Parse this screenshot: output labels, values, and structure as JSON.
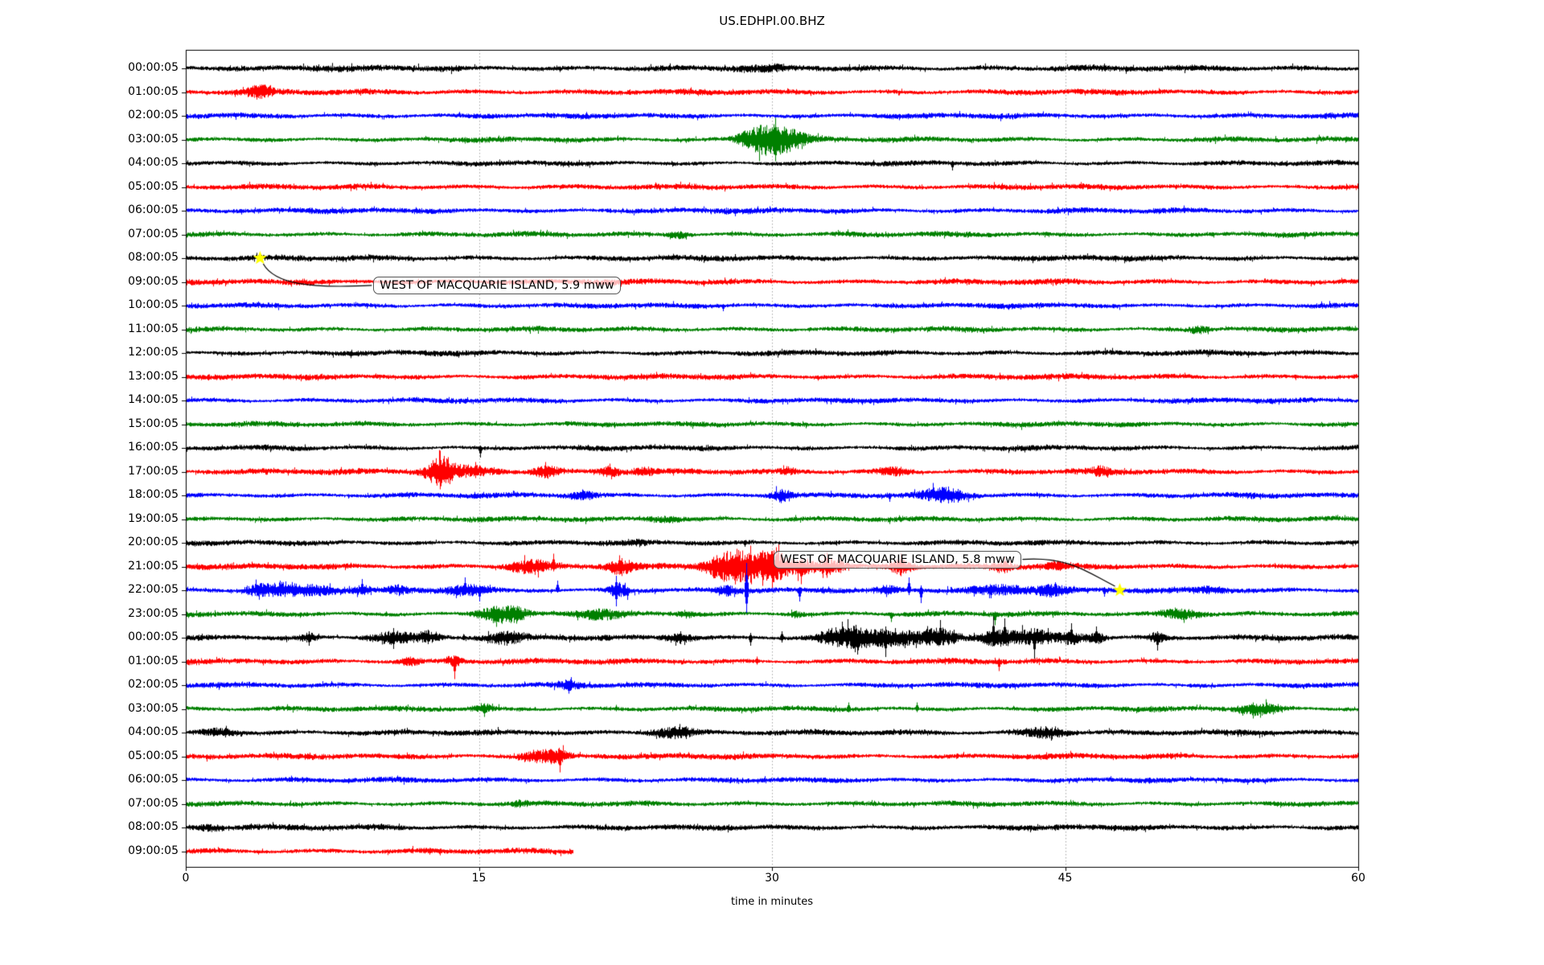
{
  "title": "US.EDHPI.00.BHZ",
  "xlabel": "time in minutes",
  "colors": {
    "black": "#000000",
    "red": "#ff0000",
    "blue": "#0000ff",
    "green": "#008000",
    "star": "#ffff00",
    "grid": "#a6a6a6",
    "axis": "#000000"
  },
  "annotations": [
    {
      "label": "WEST OF MACQUARIE ISLAND, 5.9 mww",
      "star_row": 8,
      "star_minute": 3.8,
      "box_minute": 9.6,
      "box_row": 9.15
    },
    {
      "label": "WEST OF MACQUARIE ISLAND, 5.8 mww",
      "star_row": 22,
      "star_minute": 47.8,
      "box_minute": 30.1,
      "box_row": 20.7
    }
  ],
  "chart_data": {
    "type": "line",
    "subtype": "seismogram-dayplot",
    "station": "US.EDHPI.00.BHZ",
    "xlim": [
      0,
      60
    ],
    "x_ticks": [
      0,
      15,
      30,
      45,
      60
    ],
    "grid_minutes": [
      15,
      30,
      45
    ],
    "grid_on": true,
    "interval_minutes": 60,
    "rows": [
      {
        "label": "00:00:05",
        "color": "black",
        "base": 2.8,
        "end": 60,
        "bursts": [
          [
            29.5,
            2.0,
            1.2
          ]
        ],
        "spikes": [
          [
            47.0,
            6,
            2
          ]
        ]
      },
      {
        "label": "01:00:05",
        "color": "red",
        "base": 2.6,
        "end": 60,
        "bursts": [
          [
            3.8,
            0.9,
            6
          ]
        ],
        "spikes": [
          [
            3.8,
            9,
            5
          ]
        ]
      },
      {
        "label": "02:00:05",
        "color": "blue",
        "base": 2.5,
        "end": 60,
        "bursts": [],
        "spikes": []
      },
      {
        "label": "03:00:05",
        "color": "green",
        "base": 2.4,
        "end": 60,
        "bursts": [
          [
            29.2,
            1.4,
            9
          ],
          [
            30.4,
            1.8,
            13
          ]
        ],
        "spikes": [
          [
            29.0,
            12,
            10
          ],
          [
            30.15,
            27,
            27
          ],
          [
            30.6,
            16,
            12
          ]
        ]
      },
      {
        "label": "04:00:05",
        "color": "black",
        "base": 2.3,
        "end": 60,
        "bursts": [],
        "spikes": [
          [
            39.2,
            3,
            9
          ]
        ]
      },
      {
        "label": "05:00:05",
        "color": "red",
        "base": 2.5,
        "end": 60,
        "bursts": [],
        "spikes": []
      },
      {
        "label": "06:00:05",
        "color": "blue",
        "base": 2.5,
        "end": 60,
        "bursts": [],
        "spikes": []
      },
      {
        "label": "07:00:05",
        "color": "green",
        "base": 2.4,
        "end": 60,
        "bursts": [
          [
            25.3,
            0.8,
            3
          ]
        ],
        "spikes": []
      },
      {
        "label": "08:00:05",
        "color": "black",
        "base": 2.6,
        "end": 60,
        "bursts": [],
        "spikes": []
      },
      {
        "label": "09:00:05",
        "color": "red",
        "base": 2.6,
        "end": 60,
        "bursts": [],
        "spikes": []
      },
      {
        "label": "10:00:05",
        "color": "blue",
        "base": 2.4,
        "end": 60,
        "bursts": [],
        "spikes": [
          [
            27.5,
            2,
            7
          ]
        ]
      },
      {
        "label": "11:00:05",
        "color": "green",
        "base": 2.4,
        "end": 60,
        "bursts": [
          [
            51.8,
            0.7,
            3
          ]
        ],
        "spikes": []
      },
      {
        "label": "12:00:05",
        "color": "black",
        "base": 2.5,
        "end": 60,
        "bursts": [],
        "spikes": []
      },
      {
        "label": "13:00:05",
        "color": "red",
        "base": 2.6,
        "end": 60,
        "bursts": [],
        "spikes": []
      },
      {
        "label": "14:00:05",
        "color": "blue",
        "base": 2.4,
        "end": 60,
        "bursts": [],
        "spikes": []
      },
      {
        "label": "15:00:05",
        "color": "green",
        "base": 2.4,
        "end": 60,
        "bursts": [],
        "spikes": []
      },
      {
        "label": "16:00:05",
        "color": "black",
        "base": 2.4,
        "end": 60,
        "bursts": [],
        "spikes": [
          [
            15.05,
            3,
            12
          ]
        ]
      },
      {
        "label": "17:00:05",
        "color": "red",
        "base": 2.6,
        "end": 60,
        "bursts": [
          [
            13.0,
            0.9,
            13
          ],
          [
            14.2,
            2.6,
            5
          ],
          [
            18.4,
            0.9,
            6
          ],
          [
            21.7,
            0.7,
            5
          ],
          [
            23.4,
            0.6,
            4
          ],
          [
            30.8,
            0.5,
            3
          ],
          [
            36.2,
            1.3,
            3.5
          ],
          [
            46.8,
            0.6,
            4
          ]
        ],
        "spikes": [
          [
            13.0,
            26,
            22
          ],
          [
            13.4,
            18,
            14
          ],
          [
            14.8,
            12,
            8
          ],
          [
            18.4,
            12,
            4
          ],
          [
            21.7,
            10,
            3
          ],
          [
            46.8,
            8,
            4
          ]
        ]
      },
      {
        "label": "18:00:05",
        "color": "blue",
        "base": 2.4,
        "end": 60,
        "bursts": [
          [
            20.3,
            0.9,
            4
          ],
          [
            30.5,
            0.8,
            6
          ],
          [
            38.8,
            1.6,
            7
          ]
        ],
        "spikes": [
          [
            30.5,
            8,
            6
          ],
          [
            36.0,
            3,
            8
          ],
          [
            39.0,
            11,
            10
          ],
          [
            39.5,
            8,
            9
          ]
        ]
      },
      {
        "label": "19:00:05",
        "color": "green",
        "base": 2.4,
        "end": 60,
        "bursts": [
          [
            24.5,
            1.6,
            2.5
          ]
        ],
        "spikes": []
      },
      {
        "label": "20:00:05",
        "color": "black",
        "base": 2.4,
        "end": 60,
        "bursts": [
          [
            23.3,
            0.5,
            2.5
          ]
        ],
        "spikes": [
          [
            28.6,
            3,
            5
          ]
        ]
      },
      {
        "label": "21:00:05",
        "color": "red",
        "base": 2.7,
        "end": 60,
        "bursts": [
          [
            17.6,
            1.6,
            6
          ],
          [
            22.2,
            0.9,
            7
          ],
          [
            27.6,
            1.3,
            9
          ],
          [
            28.9,
            2.4,
            13
          ],
          [
            30.3,
            0.9,
            9
          ],
          [
            31.6,
            0.7,
            7
          ],
          [
            32.9,
            1.1,
            8
          ],
          [
            36.6,
            0.9,
            7
          ],
          [
            41.8,
            0.7,
            5
          ],
          [
            44.5,
            0.6,
            3.5
          ]
        ],
        "spikes": [
          [
            18.8,
            16,
            6
          ],
          [
            22.2,
            14,
            10
          ],
          [
            27.0,
            12,
            6
          ],
          [
            28.2,
            22,
            18
          ],
          [
            28.9,
            26,
            20
          ],
          [
            29.5,
            20,
            24
          ],
          [
            30.2,
            24,
            16
          ],
          [
            31.5,
            10,
            22
          ],
          [
            32.8,
            18,
            14
          ],
          [
            33.5,
            14,
            8
          ],
          [
            36.6,
            16,
            12
          ],
          [
            41.9,
            12,
            8
          ]
        ]
      },
      {
        "label": "22:00:05",
        "color": "blue",
        "base": 2.5,
        "end": 60,
        "bursts": [
          [
            3.6,
            0.9,
            5
          ],
          [
            4.9,
            1.3,
            6
          ],
          [
            6.6,
            1.6,
            4
          ],
          [
            9.0,
            0.6,
            3.5
          ],
          [
            10.8,
            0.6,
            4
          ],
          [
            14.4,
            1.6,
            5
          ],
          [
            22.1,
            0.7,
            6
          ],
          [
            27.7,
            0.6,
            3.5
          ],
          [
            35.9,
            0.9,
            4
          ],
          [
            41.6,
            2.6,
            5
          ],
          [
            44.4,
            1.1,
            5
          ],
          [
            52.5,
            1.3,
            2.5
          ]
        ],
        "spikes": [
          [
            4.8,
            12,
            6
          ],
          [
            9.0,
            14,
            4
          ],
          [
            14.3,
            16,
            6
          ],
          [
            15.0,
            6,
            14
          ],
          [
            19.0,
            12,
            3
          ],
          [
            22.0,
            18,
            20
          ],
          [
            22.6,
            4,
            12
          ],
          [
            28.7,
            34,
            30
          ],
          [
            31.4,
            4,
            14
          ],
          [
            37.0,
            16,
            6
          ],
          [
            37.6,
            6,
            16
          ],
          [
            41.2,
            6,
            10
          ],
          [
            44.5,
            10,
            8
          ],
          [
            47.0,
            4,
            8
          ]
        ]
      },
      {
        "label": "23:00:05",
        "color": "green",
        "base": 2.4,
        "end": 60,
        "bursts": [
          [
            15.9,
            1.3,
            7
          ],
          [
            16.9,
            0.9,
            5
          ],
          [
            21.2,
            1.6,
            4
          ],
          [
            25.5,
            0.5,
            2.5
          ],
          [
            31.2,
            0.5,
            2.5
          ],
          [
            50.9,
            1.6,
            5
          ]
        ],
        "spikes": [
          [
            15.9,
            10,
            16
          ],
          [
            16.9,
            8,
            12
          ],
          [
            21.0,
            6,
            8
          ],
          [
            36.1,
            2,
            10
          ],
          [
            41.4,
            3,
            14
          ],
          [
            50.6,
            8,
            6
          ],
          [
            51.3,
            6,
            4
          ]
        ]
      },
      {
        "label": "00:00:05",
        "color": "black",
        "base": 2.6,
        "end": 60,
        "bursts": [
          [
            6.3,
            0.6,
            4
          ],
          [
            10.6,
            1.6,
            6
          ],
          [
            12.4,
            0.9,
            5
          ],
          [
            16.4,
            1.3,
            5
          ],
          [
            25.2,
            1.1,
            4
          ],
          [
            33.6,
            1.6,
            7
          ],
          [
            35.7,
            3.2,
            8
          ],
          [
            38.6,
            1.1,
            6
          ],
          [
            41.6,
            1.3,
            8
          ],
          [
            43.4,
            1.3,
            7
          ],
          [
            45.3,
            0.9,
            6
          ],
          [
            46.6,
            0.7,
            5
          ],
          [
            49.7,
            0.7,
            4
          ]
        ],
        "spikes": [
          [
            6.3,
            8,
            10
          ],
          [
            10.6,
            12,
            14
          ],
          [
            12.4,
            10,
            8
          ],
          [
            16.4,
            8,
            10
          ],
          [
            25.3,
            8,
            8
          ],
          [
            28.9,
            6,
            10
          ],
          [
            30.5,
            8,
            6
          ],
          [
            33.6,
            20,
            10
          ],
          [
            34.3,
            16,
            8
          ],
          [
            35.8,
            14,
            24
          ],
          [
            36.3,
            12,
            10
          ],
          [
            38.6,
            22,
            8
          ],
          [
            39.3,
            10,
            8
          ],
          [
            41.3,
            26,
            10
          ],
          [
            41.9,
            24,
            8
          ],
          [
            43.4,
            12,
            26
          ],
          [
            44.1,
            12,
            8
          ],
          [
            45.3,
            18,
            8
          ],
          [
            46.6,
            14,
            6
          ],
          [
            49.7,
            8,
            16
          ]
        ]
      },
      {
        "label": "01:00:05",
        "color": "red",
        "base": 2.6,
        "end": 60,
        "bursts": [
          [
            11.5,
            0.7,
            3.5
          ],
          [
            13.7,
            0.6,
            5
          ]
        ],
        "spikes": [
          [
            11.5,
            6,
            4
          ],
          [
            13.75,
            6,
            22
          ],
          [
            29.2,
            6,
            4
          ],
          [
            41.6,
            4,
            12
          ]
        ]
      },
      {
        "label": "02:00:05",
        "color": "blue",
        "base": 2.4,
        "end": 60,
        "bursts": [
          [
            19.6,
            0.7,
            4
          ]
        ],
        "spikes": [
          [
            19.7,
            10,
            6
          ]
        ]
      },
      {
        "label": "03:00:05",
        "color": "green",
        "base": 2.4,
        "end": 60,
        "bursts": [
          [
            15.2,
            0.7,
            3.5
          ],
          [
            54.9,
            1.5,
            5
          ]
        ],
        "spikes": [
          [
            15.25,
            4,
            10
          ],
          [
            22.0,
            5,
            3
          ],
          [
            33.9,
            8,
            4
          ],
          [
            37.4,
            8,
            4
          ],
          [
            54.6,
            8,
            6
          ],
          [
            55.3,
            8,
            6
          ],
          [
            55.9,
            6,
            4
          ]
        ]
      },
      {
        "label": "04:00:05",
        "color": "black",
        "base": 2.5,
        "end": 60,
        "bursts": [
          [
            1.7,
            1.3,
            4
          ],
          [
            24.9,
            1.7,
            5
          ],
          [
            43.9,
            1.7,
            5
          ]
        ],
        "spikes": [
          [
            2.0,
            6,
            6
          ],
          [
            25.0,
            8,
            6
          ],
          [
            25.6,
            6,
            8
          ],
          [
            44.0,
            8,
            6
          ],
          [
            44.6,
            6,
            6
          ]
        ]
      },
      {
        "label": "05:00:05",
        "color": "red",
        "base": 2.6,
        "end": 60,
        "bursts": [
          [
            17.9,
            1.1,
            5
          ],
          [
            19.0,
            0.9,
            7
          ]
        ],
        "spikes": [
          [
            18.0,
            8,
            6
          ],
          [
            19.15,
            8,
            20
          ]
        ]
      },
      {
        "label": "06:00:05",
        "color": "blue",
        "base": 2.4,
        "end": 60,
        "bursts": [],
        "spikes": []
      },
      {
        "label": "07:00:05",
        "color": "green",
        "base": 2.4,
        "end": 60,
        "bursts": [
          [
            17.0,
            0.6,
            2
          ]
        ],
        "spikes": []
      },
      {
        "label": "08:00:05",
        "color": "black",
        "base": 2.6,
        "end": 60,
        "bursts": [
          [
            1.2,
            1.1,
            2.5
          ]
        ],
        "spikes": []
      },
      {
        "label": "09:00:05",
        "color": "red",
        "base": 2.6,
        "end": 19.8,
        "bursts": [],
        "spikes": []
      }
    ]
  }
}
